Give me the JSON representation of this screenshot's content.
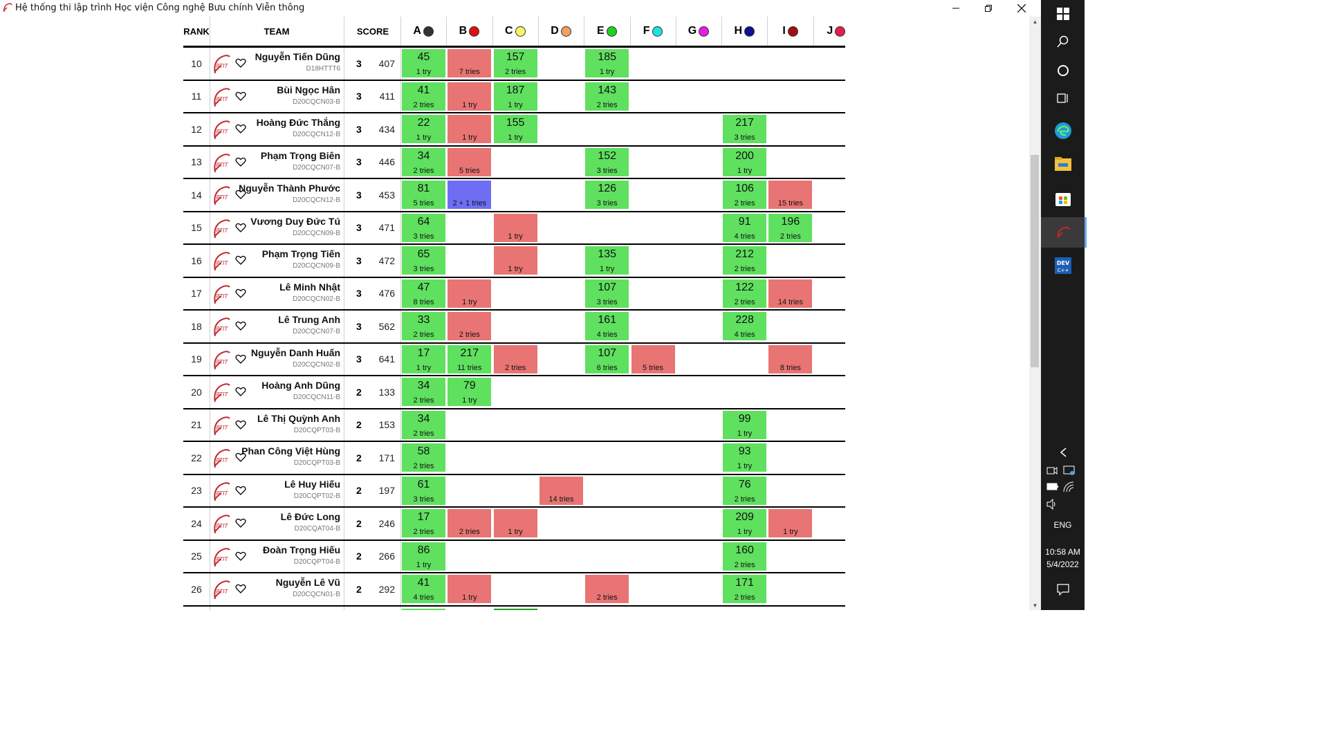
{
  "window": {
    "title": "Hệ thống thi lập trình Học viện Công nghệ Bưu chính Viễn thông"
  },
  "header": {
    "rank": "RANK",
    "team": "TEAM",
    "score": "SCORE"
  },
  "problems": [
    {
      "label": "A",
      "color": "#333333"
    },
    {
      "label": "B",
      "color": "#e01010"
    },
    {
      "label": "C",
      "color": "#f5f560"
    },
    {
      "label": "D",
      "color": "#f0a060"
    },
    {
      "label": "E",
      "color": "#20d020"
    },
    {
      "label": "F",
      "color": "#20e0e0"
    },
    {
      "label": "G",
      "color": "#e020e0"
    },
    {
      "label": "H",
      "color": "#101090"
    },
    {
      "label": "I",
      "color": "#a01010"
    },
    {
      "label": "J",
      "color": "#e02050"
    }
  ],
  "rows": [
    {
      "rank": "10",
      "name": "Nguyễn Tiến Dũng",
      "class": "D18HTTT6",
      "solved": "3",
      "penalty": "407",
      "cells": [
        {
          "p": 0,
          "status": "green",
          "time": "45",
          "tries": "1 try"
        },
        {
          "p": 1,
          "status": "red",
          "time": "",
          "tries": "7 tries"
        },
        {
          "p": 2,
          "status": "green",
          "time": "157",
          "tries": "2 tries"
        },
        {
          "p": 4,
          "status": "green",
          "time": "185",
          "tries": "1 try"
        }
      ]
    },
    {
      "rank": "11",
      "name": "Bùi Ngọc Hân",
      "class": "D20CQCN03-B",
      "solved": "3",
      "penalty": "411",
      "cells": [
        {
          "p": 0,
          "status": "green",
          "time": "41",
          "tries": "2 tries"
        },
        {
          "p": 1,
          "status": "red",
          "time": "",
          "tries": "1 try"
        },
        {
          "p": 2,
          "status": "green",
          "time": "187",
          "tries": "1 try"
        },
        {
          "p": 4,
          "status": "green",
          "time": "143",
          "tries": "2 tries"
        }
      ]
    },
    {
      "rank": "12",
      "name": "Hoàng Đức Thắng",
      "class": "D20CQCN12-B",
      "solved": "3",
      "penalty": "434",
      "cells": [
        {
          "p": 0,
          "status": "green",
          "time": "22",
          "tries": "1 try"
        },
        {
          "p": 1,
          "status": "red",
          "time": "",
          "tries": "1 try"
        },
        {
          "p": 2,
          "status": "green",
          "time": "155",
          "tries": "1 try"
        },
        {
          "p": 7,
          "status": "green",
          "time": "217",
          "tries": "3 tries"
        }
      ]
    },
    {
      "rank": "13",
      "name": "Phạm Trọng Biên",
      "class": "D20CQCN07-B",
      "solved": "3",
      "penalty": "446",
      "cells": [
        {
          "p": 0,
          "status": "green",
          "time": "34",
          "tries": "2 tries"
        },
        {
          "p": 1,
          "status": "red",
          "time": "",
          "tries": "5 tries"
        },
        {
          "p": 4,
          "status": "green",
          "time": "152",
          "tries": "3 tries"
        },
        {
          "p": 7,
          "status": "green",
          "time": "200",
          "tries": "1 try"
        }
      ]
    },
    {
      "rank": "14",
      "name": "Nguyễn Thành Phước",
      "class": "D20CQCN12-B",
      "solved": "3",
      "penalty": "453",
      "cells": [
        {
          "p": 0,
          "status": "green",
          "time": "81",
          "tries": "5 tries"
        },
        {
          "p": 1,
          "status": "blue",
          "time": "",
          "tries": "2 + 1 tries"
        },
        {
          "p": 4,
          "status": "green",
          "time": "126",
          "tries": "3 tries"
        },
        {
          "p": 7,
          "status": "green",
          "time": "106",
          "tries": "2 tries"
        },
        {
          "p": 8,
          "status": "red",
          "time": "",
          "tries": "15 tries"
        }
      ]
    },
    {
      "rank": "15",
      "name": "Vương Duy Đức Tú",
      "class": "D20CQCN09-B",
      "solved": "3",
      "penalty": "471",
      "cells": [
        {
          "p": 0,
          "status": "green",
          "time": "64",
          "tries": "3 tries"
        },
        {
          "p": 2,
          "status": "red",
          "time": "",
          "tries": "1 try"
        },
        {
          "p": 7,
          "status": "green",
          "time": "91",
          "tries": "4 tries"
        },
        {
          "p": 8,
          "status": "green",
          "time": "196",
          "tries": "2 tries"
        }
      ]
    },
    {
      "rank": "16",
      "name": "Phạm Trọng Tiến",
      "class": "D20CQCN09-B",
      "solved": "3",
      "penalty": "472",
      "cells": [
        {
          "p": 0,
          "status": "green",
          "time": "65",
          "tries": "3 tries"
        },
        {
          "p": 2,
          "status": "red",
          "time": "",
          "tries": "1 try"
        },
        {
          "p": 4,
          "status": "green",
          "time": "135",
          "tries": "1 try"
        },
        {
          "p": 7,
          "status": "green",
          "time": "212",
          "tries": "2 tries"
        }
      ]
    },
    {
      "rank": "17",
      "name": "Lê Minh Nhật",
      "class": "D20CQCN02-B",
      "solved": "3",
      "penalty": "476",
      "cells": [
        {
          "p": 0,
          "status": "green",
          "time": "47",
          "tries": "8 tries"
        },
        {
          "p": 1,
          "status": "red",
          "time": "",
          "tries": "1 try"
        },
        {
          "p": 4,
          "status": "green",
          "time": "107",
          "tries": "3 tries"
        },
        {
          "p": 7,
          "status": "green",
          "time": "122",
          "tries": "2 tries"
        },
        {
          "p": 8,
          "status": "red",
          "time": "",
          "tries": "14 tries"
        }
      ]
    },
    {
      "rank": "18",
      "name": "Lê Trung Anh",
      "class": "D20CQCN07-B",
      "solved": "3",
      "penalty": "562",
      "cells": [
        {
          "p": 0,
          "status": "green",
          "time": "33",
          "tries": "2 tries"
        },
        {
          "p": 1,
          "status": "red",
          "time": "",
          "tries": "2 tries"
        },
        {
          "p": 4,
          "status": "green",
          "time": "161",
          "tries": "4 tries"
        },
        {
          "p": 7,
          "status": "green",
          "time": "228",
          "tries": "4 tries"
        }
      ]
    },
    {
      "rank": "19",
      "name": "Nguyễn Danh Huấn",
      "class": "D20CQCN02-B",
      "solved": "3",
      "penalty": "641",
      "cells": [
        {
          "p": 0,
          "status": "green",
          "time": "17",
          "tries": "1 try"
        },
        {
          "p": 1,
          "status": "green",
          "time": "217",
          "tries": "11 tries"
        },
        {
          "p": 2,
          "status": "red",
          "time": "",
          "tries": "2 tries"
        },
        {
          "p": 4,
          "status": "green",
          "time": "107",
          "tries": "6 tries"
        },
        {
          "p": 5,
          "status": "red",
          "time": "",
          "tries": "5 tries"
        },
        {
          "p": 8,
          "status": "red",
          "time": "",
          "tries": "8 tries"
        }
      ]
    },
    {
      "rank": "20",
      "name": "Hoàng Anh Dũng",
      "class": "D20CQCN11-B",
      "solved": "2",
      "penalty": "133",
      "cells": [
        {
          "p": 0,
          "status": "green",
          "time": "34",
          "tries": "2 tries"
        },
        {
          "p": 1,
          "status": "green",
          "time": "79",
          "tries": "1 try"
        }
      ]
    },
    {
      "rank": "21",
      "name": "Lê Thị Quỳnh Anh",
      "class": "D20CQPT03-B",
      "solved": "2",
      "penalty": "153",
      "cells": [
        {
          "p": 0,
          "status": "green",
          "time": "34",
          "tries": "2 tries"
        },
        {
          "p": 7,
          "status": "green",
          "time": "99",
          "tries": "1 try"
        }
      ]
    },
    {
      "rank": "22",
      "name": "Phan Công Việt Hùng",
      "class": "D20CQPT03-B",
      "solved": "2",
      "penalty": "171",
      "cells": [
        {
          "p": 0,
          "status": "green",
          "time": "58",
          "tries": "2 tries"
        },
        {
          "p": 7,
          "status": "green",
          "time": "93",
          "tries": "1 try"
        }
      ]
    },
    {
      "rank": "23",
      "name": "Lê Huy Hiếu",
      "class": "D20CQPT02-B",
      "solved": "2",
      "penalty": "197",
      "cells": [
        {
          "p": 0,
          "status": "green",
          "time": "61",
          "tries": "3 tries"
        },
        {
          "p": 3,
          "status": "red",
          "time": "",
          "tries": "14 tries"
        },
        {
          "p": 7,
          "status": "green",
          "time": "76",
          "tries": "2 tries"
        }
      ]
    },
    {
      "rank": "24",
      "name": "Lê Đức Long",
      "class": "D20CQAT04-B",
      "solved": "2",
      "penalty": "246",
      "cells": [
        {
          "p": 0,
          "status": "green",
          "time": "17",
          "tries": "2 tries"
        },
        {
          "p": 1,
          "status": "red",
          "time": "",
          "tries": "2 tries"
        },
        {
          "p": 2,
          "status": "red",
          "time": "",
          "tries": "1 try"
        },
        {
          "p": 7,
          "status": "green",
          "time": "209",
          "tries": "1 try"
        },
        {
          "p": 8,
          "status": "red",
          "time": "",
          "tries": "1 try"
        }
      ]
    },
    {
      "rank": "25",
      "name": "Đoàn Trọng Hiếu",
      "class": "D20CQPT04-B",
      "solved": "2",
      "penalty": "266",
      "cells": [
        {
          "p": 0,
          "status": "green",
          "time": "86",
          "tries": "1 try"
        },
        {
          "p": 7,
          "status": "green",
          "time": "160",
          "tries": "2 tries"
        }
      ]
    },
    {
      "rank": "26",
      "name": "Nguyễn Lê Vũ",
      "class": "D20CQCN01-B",
      "solved": "2",
      "penalty": "292",
      "cells": [
        {
          "p": 0,
          "status": "green",
          "time": "41",
          "tries": "4 tries"
        },
        {
          "p": 1,
          "status": "red",
          "time": "",
          "tries": "1 try"
        },
        {
          "p": 4,
          "status": "red",
          "time": "",
          "tries": "2 tries"
        },
        {
          "p": 7,
          "status": "green",
          "time": "171",
          "tries": "2 tries"
        }
      ]
    }
  ],
  "taskbar": {
    "icons": [
      "windows-start-icon",
      "search-icon",
      "cortana-icon",
      "task-view-icon",
      "edge-icon",
      "file-explorer-icon",
      "store-icon",
      "contest-app-icon",
      "devcpp-icon"
    ],
    "language": "ENG",
    "time": "10:58 AM",
    "date": "5/4/2022"
  }
}
